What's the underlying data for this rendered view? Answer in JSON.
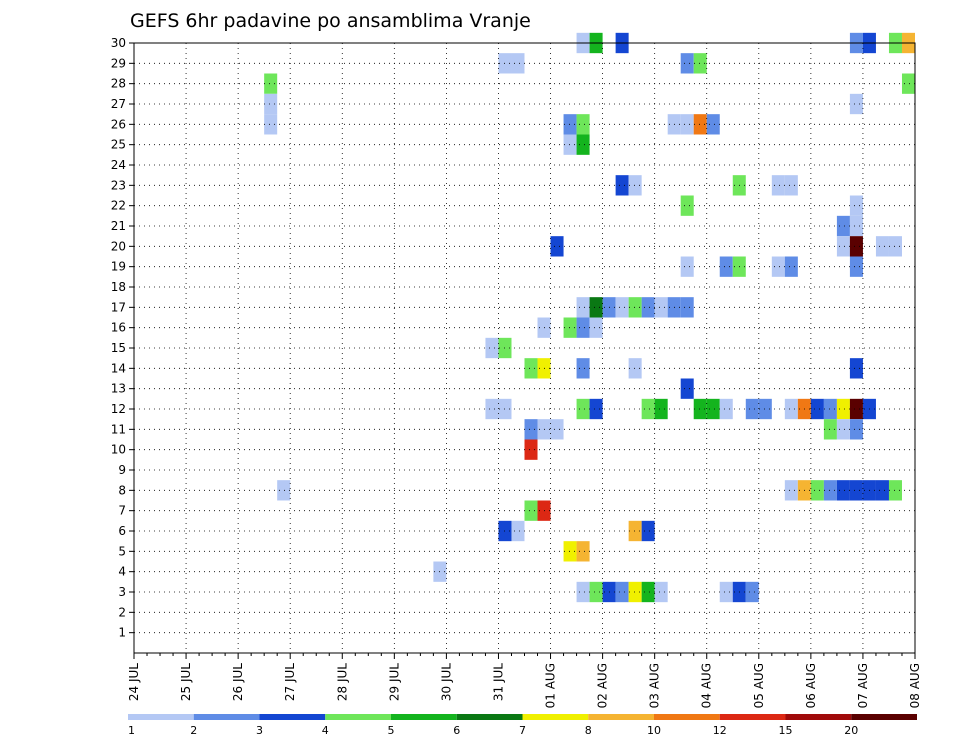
{
  "chart_data": {
    "type": "heatmap",
    "title": "GEFS 6hr padavine po ansamblima Vranje",
    "xlabel": "",
    "ylabel": "",
    "x_tick_labels": [
      "24 JUL",
      "25 JUL",
      "26 JUL",
      "27 JUL",
      "28 JUL",
      "29 JUL",
      "30 JUL",
      "31 JUL",
      "01 AUG",
      "02 AUG",
      "03 AUG",
      "04 AUG",
      "05 AUG",
      "06 AUG",
      "07 AUG",
      "08 AUG"
    ],
    "x_range_days": [
      0,
      15
    ],
    "y_tick_labels": [
      "1",
      "2",
      "3",
      "4",
      "5",
      "6",
      "7",
      "8",
      "9",
      "10",
      "11",
      "12",
      "13",
      "14",
      "15",
      "16",
      "17",
      "18",
      "19",
      "20",
      "21",
      "22",
      "23",
      "24",
      "25",
      "26",
      "27",
      "28",
      "29",
      "30"
    ],
    "y_range": [
      0,
      30
    ],
    "step_hours": 6,
    "grid": "dotted",
    "legend": {
      "position": "bottom",
      "labels": [
        "1",
        "2",
        "3",
        "4",
        "5",
        "6",
        "7",
        "8",
        "10",
        "12",
        "15",
        "20"
      ],
      "colors": [
        "#b4c8f4",
        "#5f8ce6",
        "#1446d2",
        "#6ee65a",
        "#14b41e",
        "#0a7814",
        "#f0f000",
        "#f5b432",
        "#f07814",
        "#dc2814",
        "#a00a0a",
        "#5a0000"
      ]
    },
    "palette": [
      "#b4c8f4",
      "#5f8ce6",
      "#1446d2",
      "#6ee65a",
      "#14b41e",
      "#0a7814",
      "#f0f000",
      "#f5b432",
      "#f07814",
      "#dc2814",
      "#a00a0a",
      "#5a0000"
    ],
    "cells_note": "each cell: [day_index_from_24_JUL, member, color_level_index]",
    "cells": [
      [
        8.5,
        30,
        0
      ],
      [
        8.75,
        30,
        4
      ],
      [
        9.25,
        30,
        2
      ],
      [
        13.75,
        30,
        1
      ],
      [
        14.0,
        30,
        2
      ],
      [
        14.5,
        30,
        3
      ],
      [
        14.75,
        30,
        7
      ],
      [
        7.0,
        29,
        0
      ],
      [
        7.25,
        29,
        0
      ],
      [
        10.5,
        29,
        1
      ],
      [
        10.75,
        29,
        3
      ],
      [
        2.5,
        28,
        3
      ],
      [
        14.75,
        28,
        3
      ],
      [
        2.5,
        27,
        0
      ],
      [
        13.75,
        27,
        0
      ],
      [
        2.5,
        26,
        0
      ],
      [
        8.25,
        26,
        1
      ],
      [
        8.5,
        26,
        3
      ],
      [
        10.25,
        26,
        0
      ],
      [
        10.5,
        26,
        0
      ],
      [
        10.75,
        26,
        8
      ],
      [
        11.0,
        26,
        1
      ],
      [
        8.25,
        25,
        0
      ],
      [
        8.5,
        25,
        4
      ],
      [
        9.25,
        23,
        2
      ],
      [
        9.5,
        23,
        0
      ],
      [
        11.5,
        23,
        3
      ],
      [
        12.25,
        23,
        0
      ],
      [
        12.5,
        23,
        0
      ],
      [
        10.5,
        22,
        3
      ],
      [
        13.75,
        22,
        0
      ],
      [
        13.5,
        21,
        1
      ],
      [
        13.75,
        21,
        0
      ],
      [
        8.0,
        20,
        2
      ],
      [
        13.5,
        20,
        0
      ],
      [
        13.75,
        20,
        11
      ],
      [
        14.25,
        20,
        0
      ],
      [
        14.5,
        20,
        0
      ],
      [
        10.5,
        19,
        0
      ],
      [
        11.25,
        19,
        1
      ],
      [
        11.5,
        19,
        3
      ],
      [
        12.25,
        19,
        0
      ],
      [
        12.5,
        19,
        1
      ],
      [
        13.75,
        19,
        1
      ],
      [
        8.5,
        17,
        0
      ],
      [
        8.75,
        17,
        5
      ],
      [
        9.0,
        17,
        1
      ],
      [
        9.25,
        17,
        0
      ],
      [
        9.5,
        17,
        3
      ],
      [
        9.75,
        17,
        1
      ],
      [
        10.0,
        17,
        0
      ],
      [
        10.25,
        17,
        1
      ],
      [
        10.5,
        17,
        1
      ],
      [
        7.75,
        16,
        0
      ],
      [
        8.25,
        16,
        3
      ],
      [
        8.5,
        16,
        1
      ],
      [
        8.75,
        16,
        0
      ],
      [
        6.75,
        15,
        0
      ],
      [
        7.0,
        15,
        3
      ],
      [
        7.5,
        14,
        3
      ],
      [
        7.75,
        14,
        6
      ],
      [
        8.5,
        14,
        1
      ],
      [
        9.5,
        14,
        0
      ],
      [
        13.75,
        14,
        2
      ],
      [
        10.5,
        13,
        2
      ],
      [
        6.75,
        12,
        0
      ],
      [
        7.0,
        12,
        0
      ],
      [
        8.5,
        12,
        3
      ],
      [
        8.75,
        12,
        2
      ],
      [
        9.75,
        12,
        3
      ],
      [
        10.0,
        12,
        4
      ],
      [
        10.75,
        12,
        4
      ],
      [
        11.0,
        12,
        4
      ],
      [
        11.25,
        12,
        0
      ],
      [
        11.75,
        12,
        1
      ],
      [
        12.0,
        12,
        1
      ],
      [
        12.5,
        12,
        0
      ],
      [
        12.75,
        12,
        8
      ],
      [
        13.0,
        12,
        2
      ],
      [
        13.25,
        12,
        1
      ],
      [
        13.5,
        12,
        6
      ],
      [
        13.75,
        12,
        11
      ],
      [
        14.0,
        12,
        2
      ],
      [
        7.5,
        11,
        1
      ],
      [
        7.75,
        11,
        0
      ],
      [
        8.0,
        11,
        0
      ],
      [
        13.25,
        11,
        3
      ],
      [
        13.75,
        11,
        1
      ],
      [
        13.5,
        11,
        0
      ],
      [
        7.5,
        10,
        9
      ],
      [
        2.75,
        8,
        0
      ],
      [
        12.5,
        8,
        0
      ],
      [
        12.75,
        8,
        7
      ],
      [
        13.0,
        8,
        3
      ],
      [
        13.25,
        8,
        1
      ],
      [
        13.5,
        8,
        2
      ],
      [
        13.75,
        8,
        2
      ],
      [
        14.0,
        8,
        2
      ],
      [
        14.25,
        8,
        2
      ],
      [
        14.5,
        8,
        3
      ],
      [
        7.5,
        7,
        3
      ],
      [
        7.75,
        7,
        9
      ],
      [
        7.0,
        6,
        2
      ],
      [
        7.25,
        6,
        0
      ],
      [
        9.5,
        6,
        7
      ],
      [
        9.75,
        6,
        2
      ],
      [
        8.25,
        5,
        6
      ],
      [
        8.5,
        5,
        7
      ],
      [
        5.75,
        4,
        0
      ],
      [
        8.5,
        3,
        0
      ],
      [
        8.75,
        3,
        3
      ],
      [
        9.0,
        3,
        2
      ],
      [
        9.25,
        3,
        1
      ],
      [
        9.5,
        3,
        6
      ],
      [
        9.75,
        3,
        4
      ],
      [
        10.0,
        3,
        0
      ],
      [
        11.25,
        3,
        0
      ],
      [
        11.5,
        3,
        2
      ],
      [
        11.75,
        3,
        1
      ]
    ]
  }
}
